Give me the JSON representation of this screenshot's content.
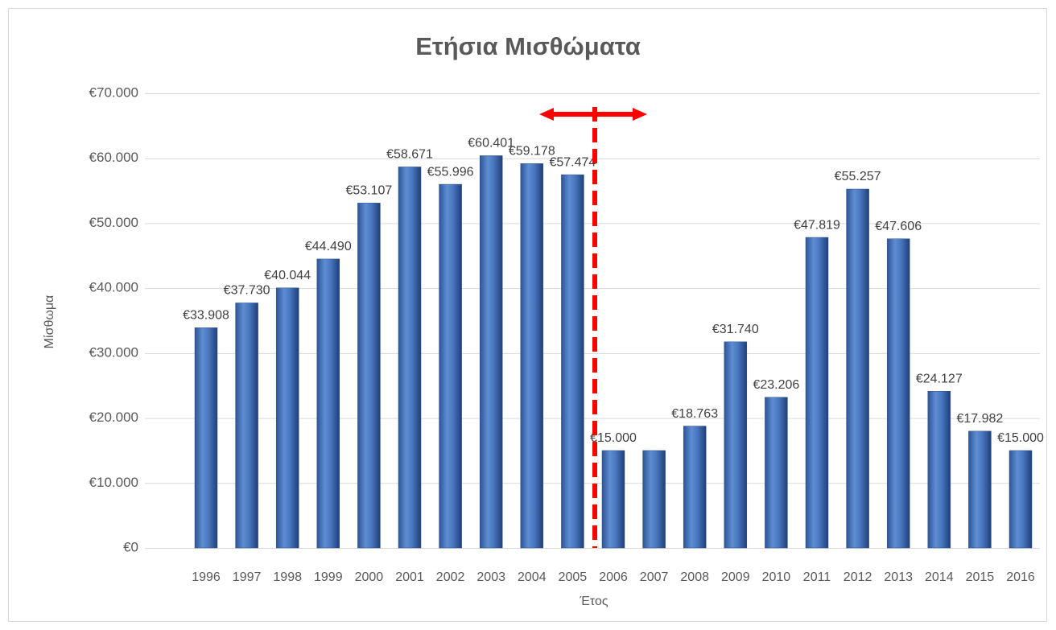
{
  "chart_data": {
    "type": "bar",
    "title": "Ετήσια Μισθώματα",
    "x_label": "Έτος",
    "y_label": "Μίσθωμα",
    "categories": [
      "1996",
      "1997",
      "1998",
      "1999",
      "2000",
      "2001",
      "2002",
      "2003",
      "2004",
      "2005",
      "2006",
      "2007",
      "2008",
      "2009",
      "2010",
      "2011",
      "2012",
      "2013",
      "2014",
      "2015",
      "2016"
    ],
    "values": [
      33908,
      37730,
      40044,
      44490,
      53107,
      58671,
      55996,
      60401,
      59178,
      57474,
      15000,
      15000,
      18763,
      31740,
      23206,
      47819,
      55257,
      47606,
      24127,
      17982,
      15000
    ],
    "value_labels": [
      "€33.908",
      "€37.730",
      "€40.044",
      "€44.490",
      "€53.107",
      "€58.671",
      "€55.996",
      "€60.401",
      "€59.178",
      "€57.474",
      "€15.000",
      null,
      "€18.763",
      "€31.740",
      "€23.206",
      "€47.819",
      "€55.257",
      "€47.606",
      "€24.127",
      "€17.982",
      "€15.000"
    ],
    "color": "#4472c4",
    "ylim": [
      0,
      70000
    ],
    "yticks": [
      {
        "value": 0,
        "label": "€0"
      },
      {
        "value": 10000,
        "label": "€10.000"
      },
      {
        "value": 20000,
        "label": "€20.000"
      },
      {
        "value": 30000,
        "label": "€30.000"
      },
      {
        "value": 40000,
        "label": "€40.000"
      },
      {
        "value": 50000,
        "label": "€50.000"
      },
      {
        "value": 60000,
        "label": "€60.000"
      },
      {
        "value": 70000,
        "label": "€70.000"
      }
    ],
    "grid": true
  }
}
